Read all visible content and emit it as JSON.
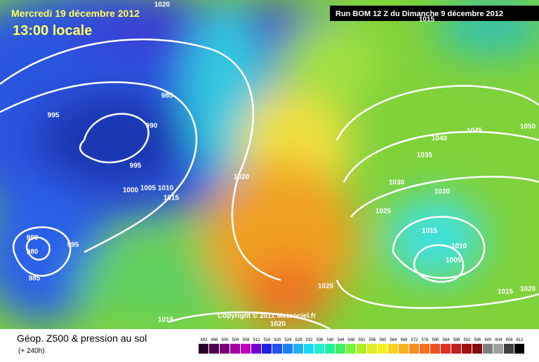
{
  "header": {
    "date": "Mercredi 19 décembre 2012",
    "time": "13:00 locale",
    "run": "Run BOM 12 Z du Dimanche 9 décembre 2012"
  },
  "map": {
    "copyright": "Copyright © 2011 Meteociel.fr",
    "isobar_labels": [
      "1020",
      "1015",
      "985",
      "995",
      "990",
      "995",
      "1000",
      "1005",
      "1010",
      "1015",
      "1020",
      "990",
      "980",
      "985",
      "995",
      "1045",
      "1050",
      "1040",
      "1035",
      "1030",
      "1020",
      "1025",
      "1015",
      "1010",
      "1005",
      "1025",
      "1015",
      "1020",
      "1015",
      "1020"
    ]
  },
  "footer": {
    "title": "Géop. Z500 & pression au sol",
    "lead": "(+ 240h)",
    "legend": [
      492,
      496,
      500,
      504,
      508,
      512,
      516,
      520,
      524,
      528,
      532,
      536,
      540,
      544,
      548,
      552,
      556,
      560,
      564,
      568,
      572,
      576,
      580,
      584,
      588,
      592,
      596,
      600,
      604,
      608,
      612
    ]
  }
}
